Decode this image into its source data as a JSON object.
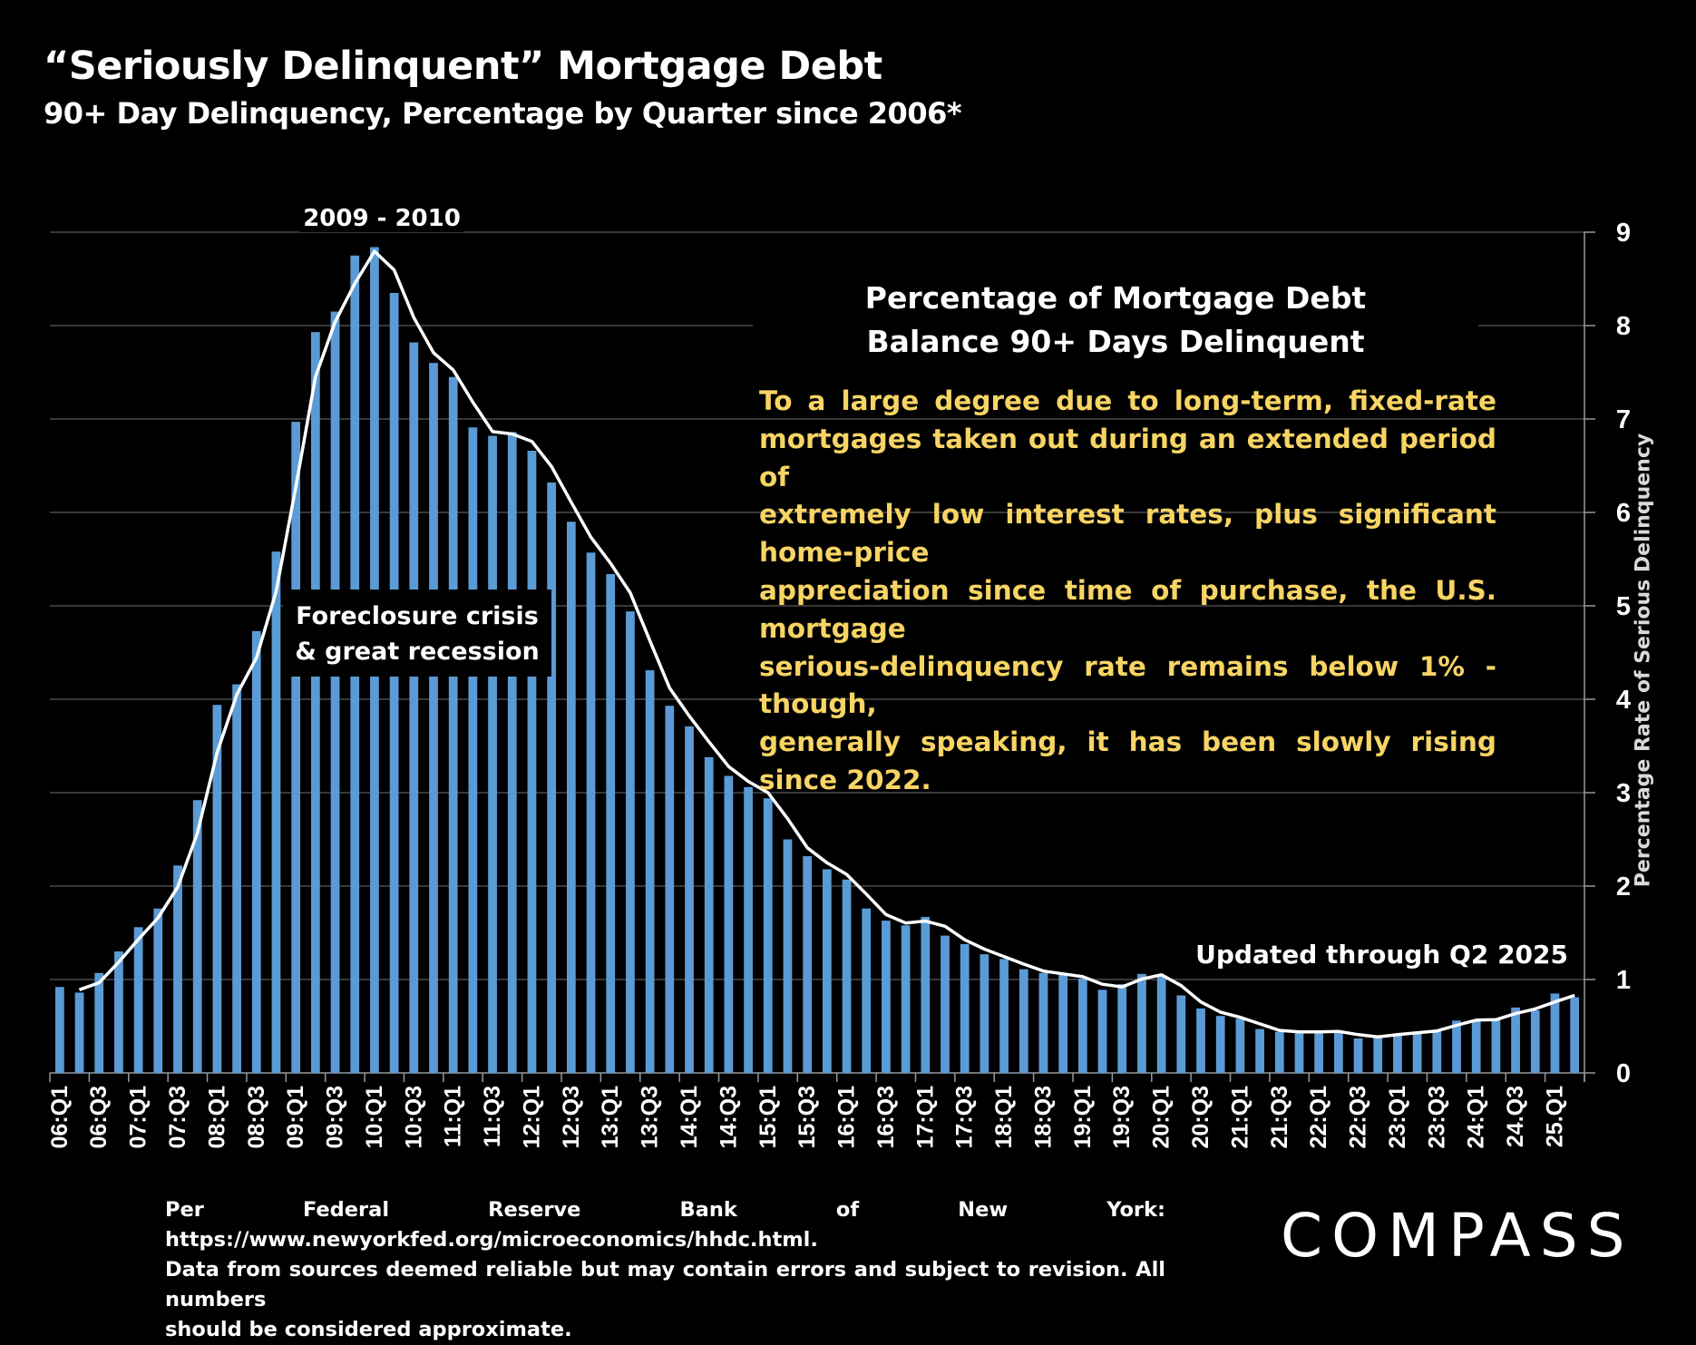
{
  "title": "“Seriously Delinquent” Mortgage Debt",
  "subtitle": "90+ Day Delinquency, Percentage by Quarter since 2006*",
  "annotations": {
    "peak": "2009 - 2010",
    "crisis_line1": "Foreclosure crisis",
    "crisis_line2": "& great recession",
    "box_title_line1": "Percentage of Mortgage Debt",
    "box_title_line2": "Balance 90+ Days Delinquent",
    "paragraph_lines": [
      "To a large degree due to long-term, fixed-rate",
      "mortgages taken out during an extended period of",
      "extremely low interest rates, plus significant home-price",
      "appreciation since time of purchase, the U.S. mortgage",
      "serious-delinquency rate remains below 1% - though,",
      "generally speaking, it has been slowly rising since 2022."
    ],
    "updated": "Updated through Q2 2025"
  },
  "footer": {
    "line1": "Per Federal Reserve Bank of New York: https://www.newyorkfed.org/microeconomics/hhdc.html.",
    "line2": "Data from sources deemed reliable but may contain errors and subject to revision. All numbers",
    "line3": "should be considered approximate."
  },
  "logo": "COMPASS",
  "colors": {
    "bar": "#5b9bd5",
    "trendline": "#ffffff",
    "paragraph": "#f7d464",
    "background": "#000000",
    "grid": "#4a4a4a"
  },
  "chart_data": {
    "type": "bar",
    "ylabel": "Percentage Rate of Serious Delinquency",
    "y_axis_side": "right",
    "ylim": [
      0,
      9
    ],
    "yticks": [
      0,
      1,
      2,
      3,
      4,
      5,
      6,
      7,
      8,
      9
    ],
    "grid": true,
    "trendline": "2-period moving average",
    "tick_labels": [
      "06:Q1",
      "06:Q3",
      "07:Q1",
      "07:Q3",
      "08:Q1",
      "08:Q3",
      "09:Q1",
      "09:Q3",
      "10:Q1",
      "10:Q3",
      "11:Q1",
      "11:Q3",
      "12:Q1",
      "12:Q3",
      "13:Q1",
      "13:Q3",
      "14:Q1",
      "14:Q3",
      "15:Q1",
      "15:Q3",
      "16:Q1",
      "16:Q3",
      "17:Q1",
      "17:Q3",
      "18:Q1",
      "18:Q3",
      "19:Q1",
      "19:Q3",
      "20:Q1",
      "20:Q3",
      "21:Q1",
      "21:Q3",
      "22:Q1",
      "22:Q3",
      "23:Q1",
      "23:Q3",
      "24:Q1",
      "24.Q3",
      "25.Q1"
    ],
    "categories": [
      "06:Q1",
      "06:Q2",
      "06:Q3",
      "06:Q4",
      "07:Q1",
      "07:Q2",
      "07:Q3",
      "07:Q4",
      "08:Q1",
      "08:Q2",
      "08:Q3",
      "08:Q4",
      "09:Q1",
      "09:Q2",
      "09:Q3",
      "09:Q4",
      "10:Q1",
      "10:Q2",
      "10:Q3",
      "10:Q4",
      "11:Q1",
      "11:Q2",
      "11:Q3",
      "11:Q4",
      "12:Q1",
      "12:Q2",
      "12:Q3",
      "12:Q4",
      "13:Q1",
      "13:Q2",
      "13:Q3",
      "13:Q4",
      "14:Q1",
      "14:Q2",
      "14:Q3",
      "14:Q4",
      "15:Q1",
      "15:Q2",
      "15:Q3",
      "15:Q4",
      "16:Q1",
      "16:Q2",
      "16:Q3",
      "16:Q4",
      "17:Q1",
      "17:Q2",
      "17:Q3",
      "17:Q4",
      "18:Q1",
      "18:Q2",
      "18:Q3",
      "18:Q4",
      "19:Q1",
      "19:Q2",
      "19:Q3",
      "19:Q4",
      "20:Q1",
      "20:Q2",
      "20:Q3",
      "20:Q4",
      "21:Q1",
      "21:Q2",
      "21:Q3",
      "21:Q4",
      "22:Q1",
      "22:Q2",
      "22:Q3",
      "22:Q4",
      "23:Q1",
      "23:Q2",
      "23:Q3",
      "23:Q4",
      "24:Q1",
      "24:Q2",
      "24:Q3",
      "24:Q4",
      "25:Q1",
      "25:Q2"
    ],
    "values": [
      0.92,
      0.86,
      1.07,
      1.3,
      1.56,
      1.76,
      2.22,
      2.92,
      3.94,
      4.16,
      4.73,
      5.58,
      6.97,
      7.93,
      8.15,
      8.75,
      8.84,
      8.35,
      7.82,
      7.6,
      7.45,
      6.91,
      6.82,
      6.86,
      6.66,
      6.32,
      5.9,
      5.57,
      5.34,
      4.94,
      4.31,
      3.93,
      3.71,
      3.38,
      3.18,
      3.06,
      2.94,
      2.5,
      2.32,
      2.18,
      2.07,
      1.76,
      1.63,
      1.58,
      1.67,
      1.47,
      1.38,
      1.27,
      1.22,
      1.11,
      1.07,
      1.05,
      1.01,
      0.89,
      0.95,
      1.06,
      1.04,
      0.83,
      0.69,
      0.61,
      0.58,
      0.47,
      0.44,
      0.44,
      0.44,
      0.45,
      0.37,
      0.4,
      0.42,
      0.44,
      0.46,
      0.56,
      0.57,
      0.57,
      0.7,
      0.67,
      0.85,
      0.81
    ]
  }
}
